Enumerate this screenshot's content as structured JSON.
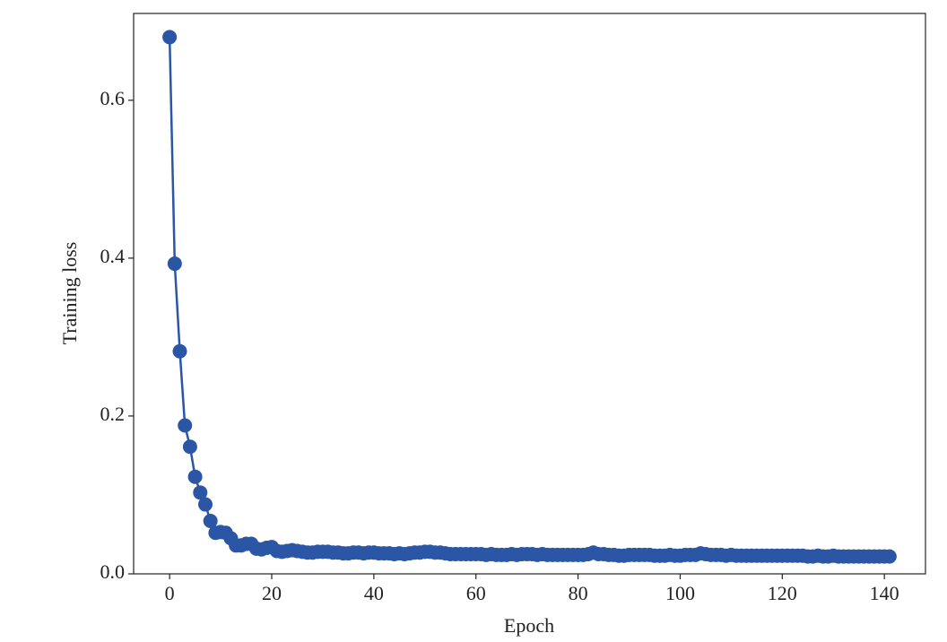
{
  "chart_data": {
    "type": "line",
    "xlabel": "Epoch",
    "ylabel": "Training loss",
    "color": "#2b56a6",
    "markers": true,
    "x": [
      0,
      1,
      2,
      3,
      4,
      5,
      6,
      7,
      8,
      9,
      10,
      11,
      12,
      13,
      14,
      15,
      16,
      17,
      18,
      19,
      20,
      21,
      22,
      23,
      24,
      25,
      26,
      27,
      28,
      29,
      30,
      31,
      32,
      33,
      34,
      35,
      36,
      37,
      38,
      39,
      40,
      41,
      42,
      43,
      44,
      45,
      46,
      47,
      48,
      49,
      50,
      51,
      52,
      53,
      54,
      55,
      56,
      57,
      58,
      59,
      60,
      61,
      62,
      63,
      64,
      65,
      66,
      67,
      68,
      69,
      70,
      71,
      72,
      73,
      74,
      75,
      76,
      77,
      78,
      79,
      80,
      81,
      82,
      83,
      84,
      85,
      86,
      87,
      88,
      89,
      90,
      91,
      92,
      93,
      94,
      95,
      96,
      97,
      98,
      99,
      100,
      101,
      102,
      103,
      104,
      105,
      106,
      107,
      108,
      109,
      110,
      111,
      112,
      113,
      114,
      115,
      116,
      117,
      118,
      119,
      120,
      121,
      122,
      123,
      124,
      125,
      126,
      127,
      128,
      129,
      130,
      131,
      132,
      133,
      134,
      135,
      136,
      137,
      138,
      139,
      140,
      141
    ],
    "values": [
      0.68,
      0.393,
      0.282,
      0.188,
      0.161,
      0.123,
      0.103,
      0.088,
      0.067,
      0.052,
      0.053,
      0.052,
      0.045,
      0.036,
      0.036,
      0.038,
      0.038,
      0.032,
      0.031,
      0.033,
      0.034,
      0.029,
      0.028,
      0.029,
      0.03,
      0.029,
      0.028,
      0.027,
      0.027,
      0.028,
      0.028,
      0.028,
      0.027,
      0.027,
      0.026,
      0.026,
      0.027,
      0.027,
      0.026,
      0.027,
      0.027,
      0.026,
      0.026,
      0.026,
      0.025,
      0.026,
      0.025,
      0.026,
      0.027,
      0.027,
      0.028,
      0.028,
      0.027,
      0.027,
      0.026,
      0.025,
      0.025,
      0.025,
      0.025,
      0.025,
      0.025,
      0.025,
      0.024,
      0.025,
      0.024,
      0.024,
      0.024,
      0.025,
      0.024,
      0.025,
      0.025,
      0.025,
      0.024,
      0.025,
      0.024,
      0.024,
      0.024,
      0.024,
      0.024,
      0.024,
      0.024,
      0.024,
      0.025,
      0.027,
      0.025,
      0.025,
      0.024,
      0.024,
      0.023,
      0.023,
      0.024,
      0.024,
      0.024,
      0.024,
      0.024,
      0.023,
      0.023,
      0.023,
      0.024,
      0.023,
      0.023,
      0.024,
      0.024,
      0.024,
      0.026,
      0.025,
      0.024,
      0.024,
      0.024,
      0.023,
      0.024,
      0.023,
      0.023,
      0.023,
      0.023,
      0.023,
      0.023,
      0.023,
      0.023,
      0.023,
      0.023,
      0.023,
      0.023,
      0.023,
      0.023,
      0.022,
      0.022,
      0.023,
      0.022,
      0.022,
      0.023,
      0.022,
      0.022,
      0.022,
      0.022,
      0.022,
      0.022,
      0.022,
      0.022,
      0.022,
      0.022,
      0.022
    ],
    "xlim": [
      -7.05,
      148.05
    ],
    "ylim": [
      0,
      0.71
    ],
    "xticks": [
      0,
      20,
      40,
      60,
      80,
      100,
      120,
      140
    ],
    "yticks": [
      {
        "value": 0,
        "label": "0.0"
      },
      0.2,
      0.4,
      0.6
    ]
  }
}
